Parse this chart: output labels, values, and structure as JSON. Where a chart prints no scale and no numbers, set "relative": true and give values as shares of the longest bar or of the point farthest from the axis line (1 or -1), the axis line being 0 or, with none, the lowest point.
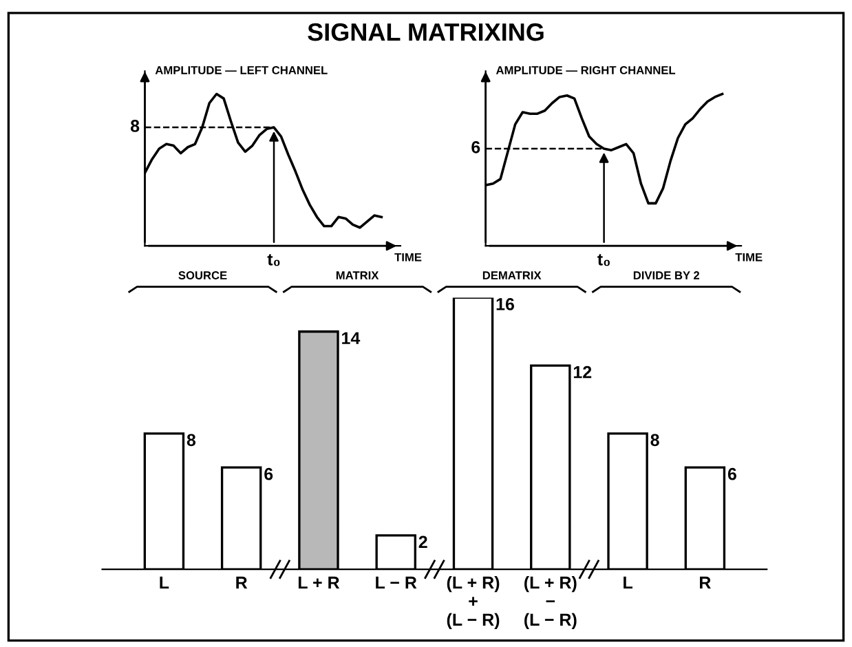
{
  "chart_data": [
    {
      "type": "line",
      "title": "SIGNAL MATRIXING",
      "ylabel": "AMPLITUDE — LEFT CHANNEL",
      "xlabel": "TIME",
      "relative": true,
      "grid": false,
      "legend": false,
      "categories": [
        null,
        null,
        null,
        null,
        null,
        null,
        null,
        null,
        null,
        null,
        null,
        null,
        null,
        null,
        null,
        null,
        null,
        null,
        null,
        null,
        null,
        null,
        null,
        null,
        null,
        null,
        null,
        null,
        null,
        null,
        null,
        null,
        null,
        null
      ],
      "series": [
        {
          "color": "#000000",
          "values": [
            0.48,
            0.57,
            0.64,
            0.67,
            0.66,
            0.61,
            0.65,
            0.67,
            0.78,
            0.94,
            1.0,
            0.97,
            0.82,
            0.68,
            0.62,
            0.66,
            0.73,
            0.77,
            0.78,
            0.72,
            0.6,
            0.49,
            0.37,
            0.27,
            0.19,
            0.13,
            0.13,
            0.19,
            0.18,
            0.14,
            0.12,
            0.16,
            0.2,
            0.19
          ]
        }
      ],
      "ref_lines": [
        {
          "axis": "y",
          "value": 0.78,
          "line_style": "dashed"
        }
      ],
      "annotations": [
        "8",
        "t₀"
      ]
    },
    {
      "type": "line",
      "ylabel": "AMPLITUDE — RIGHT CHANNEL",
      "xlabel": "TIME",
      "relative": true,
      "grid": false,
      "legend": false,
      "categories": [
        null,
        null,
        null,
        null,
        null,
        null,
        null,
        null,
        null,
        null,
        null,
        null,
        null,
        null,
        null,
        null,
        null,
        null,
        null,
        null,
        null,
        null,
        null,
        null,
        null,
        null,
        null,
        null,
        null,
        null,
        null,
        null,
        null
      ],
      "series": [
        {
          "color": "#000000",
          "values": [
            0.4,
            0.41,
            0.44,
            0.62,
            0.8,
            0.88,
            0.87,
            0.87,
            0.89,
            0.94,
            0.98,
            0.99,
            0.97,
            0.84,
            0.72,
            0.67,
            0.64,
            0.63,
            0.65,
            0.67,
            0.61,
            0.41,
            0.28,
            0.28,
            0.38,
            0.56,
            0.71,
            0.8,
            0.84,
            0.9,
            0.95,
            0.98,
            1.0
          ]
        }
      ],
      "ref_lines": [
        {
          "axis": "y",
          "value": 0.64,
          "line_style": "dashed"
        }
      ],
      "annotations": [
        "6",
        "t₀"
      ]
    },
    {
      "type": "bar",
      "categories": [
        "L",
        "R",
        "L + R",
        "L − R",
        "(L + R)\n+\n(L − R)",
        "(L + R)\n−\n(L − R)",
        "L",
        "R"
      ],
      "values": [
        8,
        6,
        14,
        2,
        16,
        12,
        8,
        6
      ],
      "colors": [
        "#ffffff",
        "#ffffff",
        "#b8b8b8",
        "#ffffff",
        "#ffffff",
        "#ffffff",
        "#ffffff",
        "#ffffff"
      ],
      "data_labels": true,
      "grid": false,
      "legend": false,
      "tick_labels": "x",
      "annotations": [
        "SOURCE",
        "MATRIX",
        "DEMATRIX",
        "DIVIDE BY 2"
      ]
    }
  ]
}
